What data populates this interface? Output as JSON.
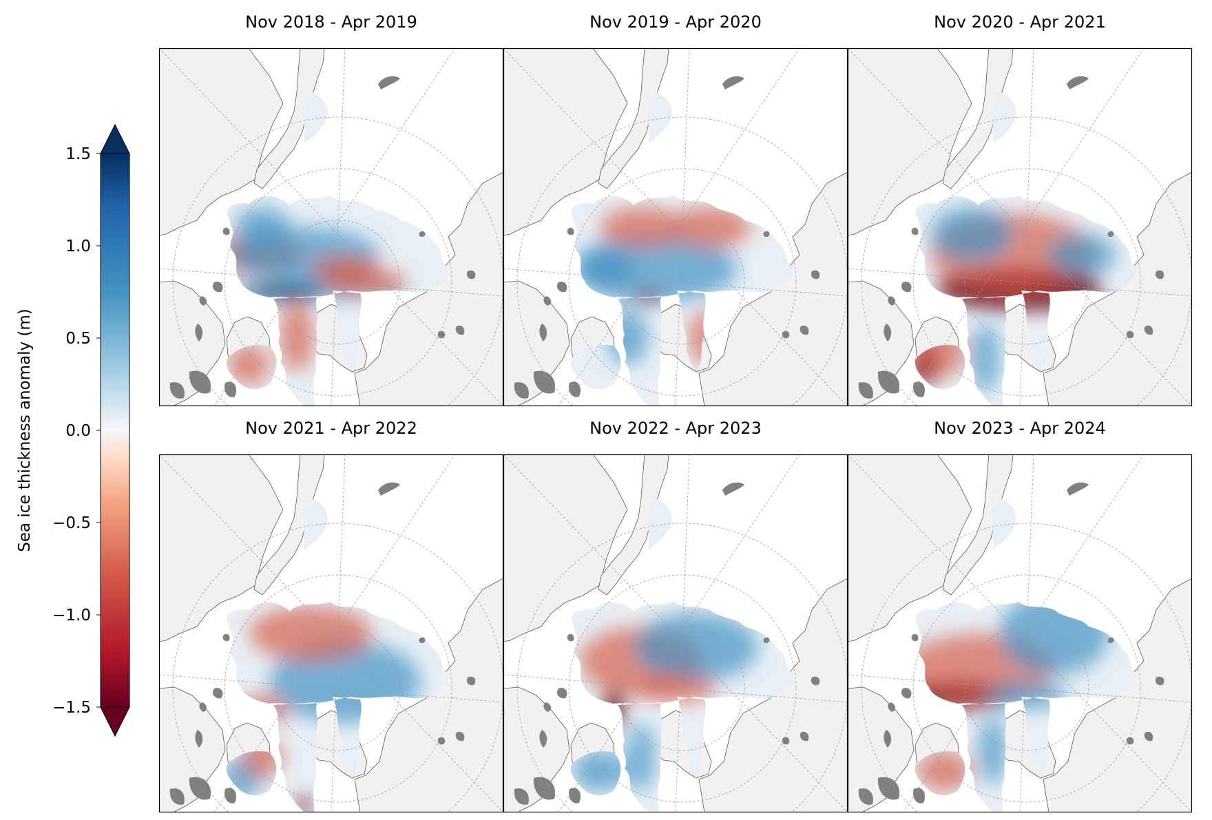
{
  "panels": [
    {
      "title": "Nov 2018 - Apr 2019",
      "pattern": "y2019"
    },
    {
      "title": "Nov 2019 - Apr 2020",
      "pattern": "y2020"
    },
    {
      "title": "Nov 2020 - Apr 2021",
      "pattern": "y2021"
    },
    {
      "title": "Nov 2021 - Apr 2022",
      "pattern": "y2022"
    },
    {
      "title": "Nov 2022 - Apr 2023",
      "pattern": "y2023"
    },
    {
      "title": "Nov 2023 - Apr 2024",
      "pattern": "y2024"
    }
  ],
  "colorbar": {
    "label": "Sea ice thickness anomaly (m)",
    "min": -1.5,
    "max": 1.5,
    "extend": "both",
    "colormap": "RdBu",
    "ticks": [
      "1.5",
      "1.0",
      "0.5",
      "0.0",
      "−0.5",
      "−1.0",
      "−1.5"
    ],
    "tick_values": [
      1.5,
      1.0,
      0.5,
      0.0,
      -0.5,
      -1.0,
      -1.5
    ]
  },
  "colors": {
    "land": "#f1f1f1",
    "lakes": "#808080",
    "ocean": "#ffffff",
    "strong_negative": "#67001f",
    "negative": "#d6604d",
    "neutral": "#f7f7f7",
    "positive": "#4393c3",
    "strong_positive": "#053061"
  }
}
